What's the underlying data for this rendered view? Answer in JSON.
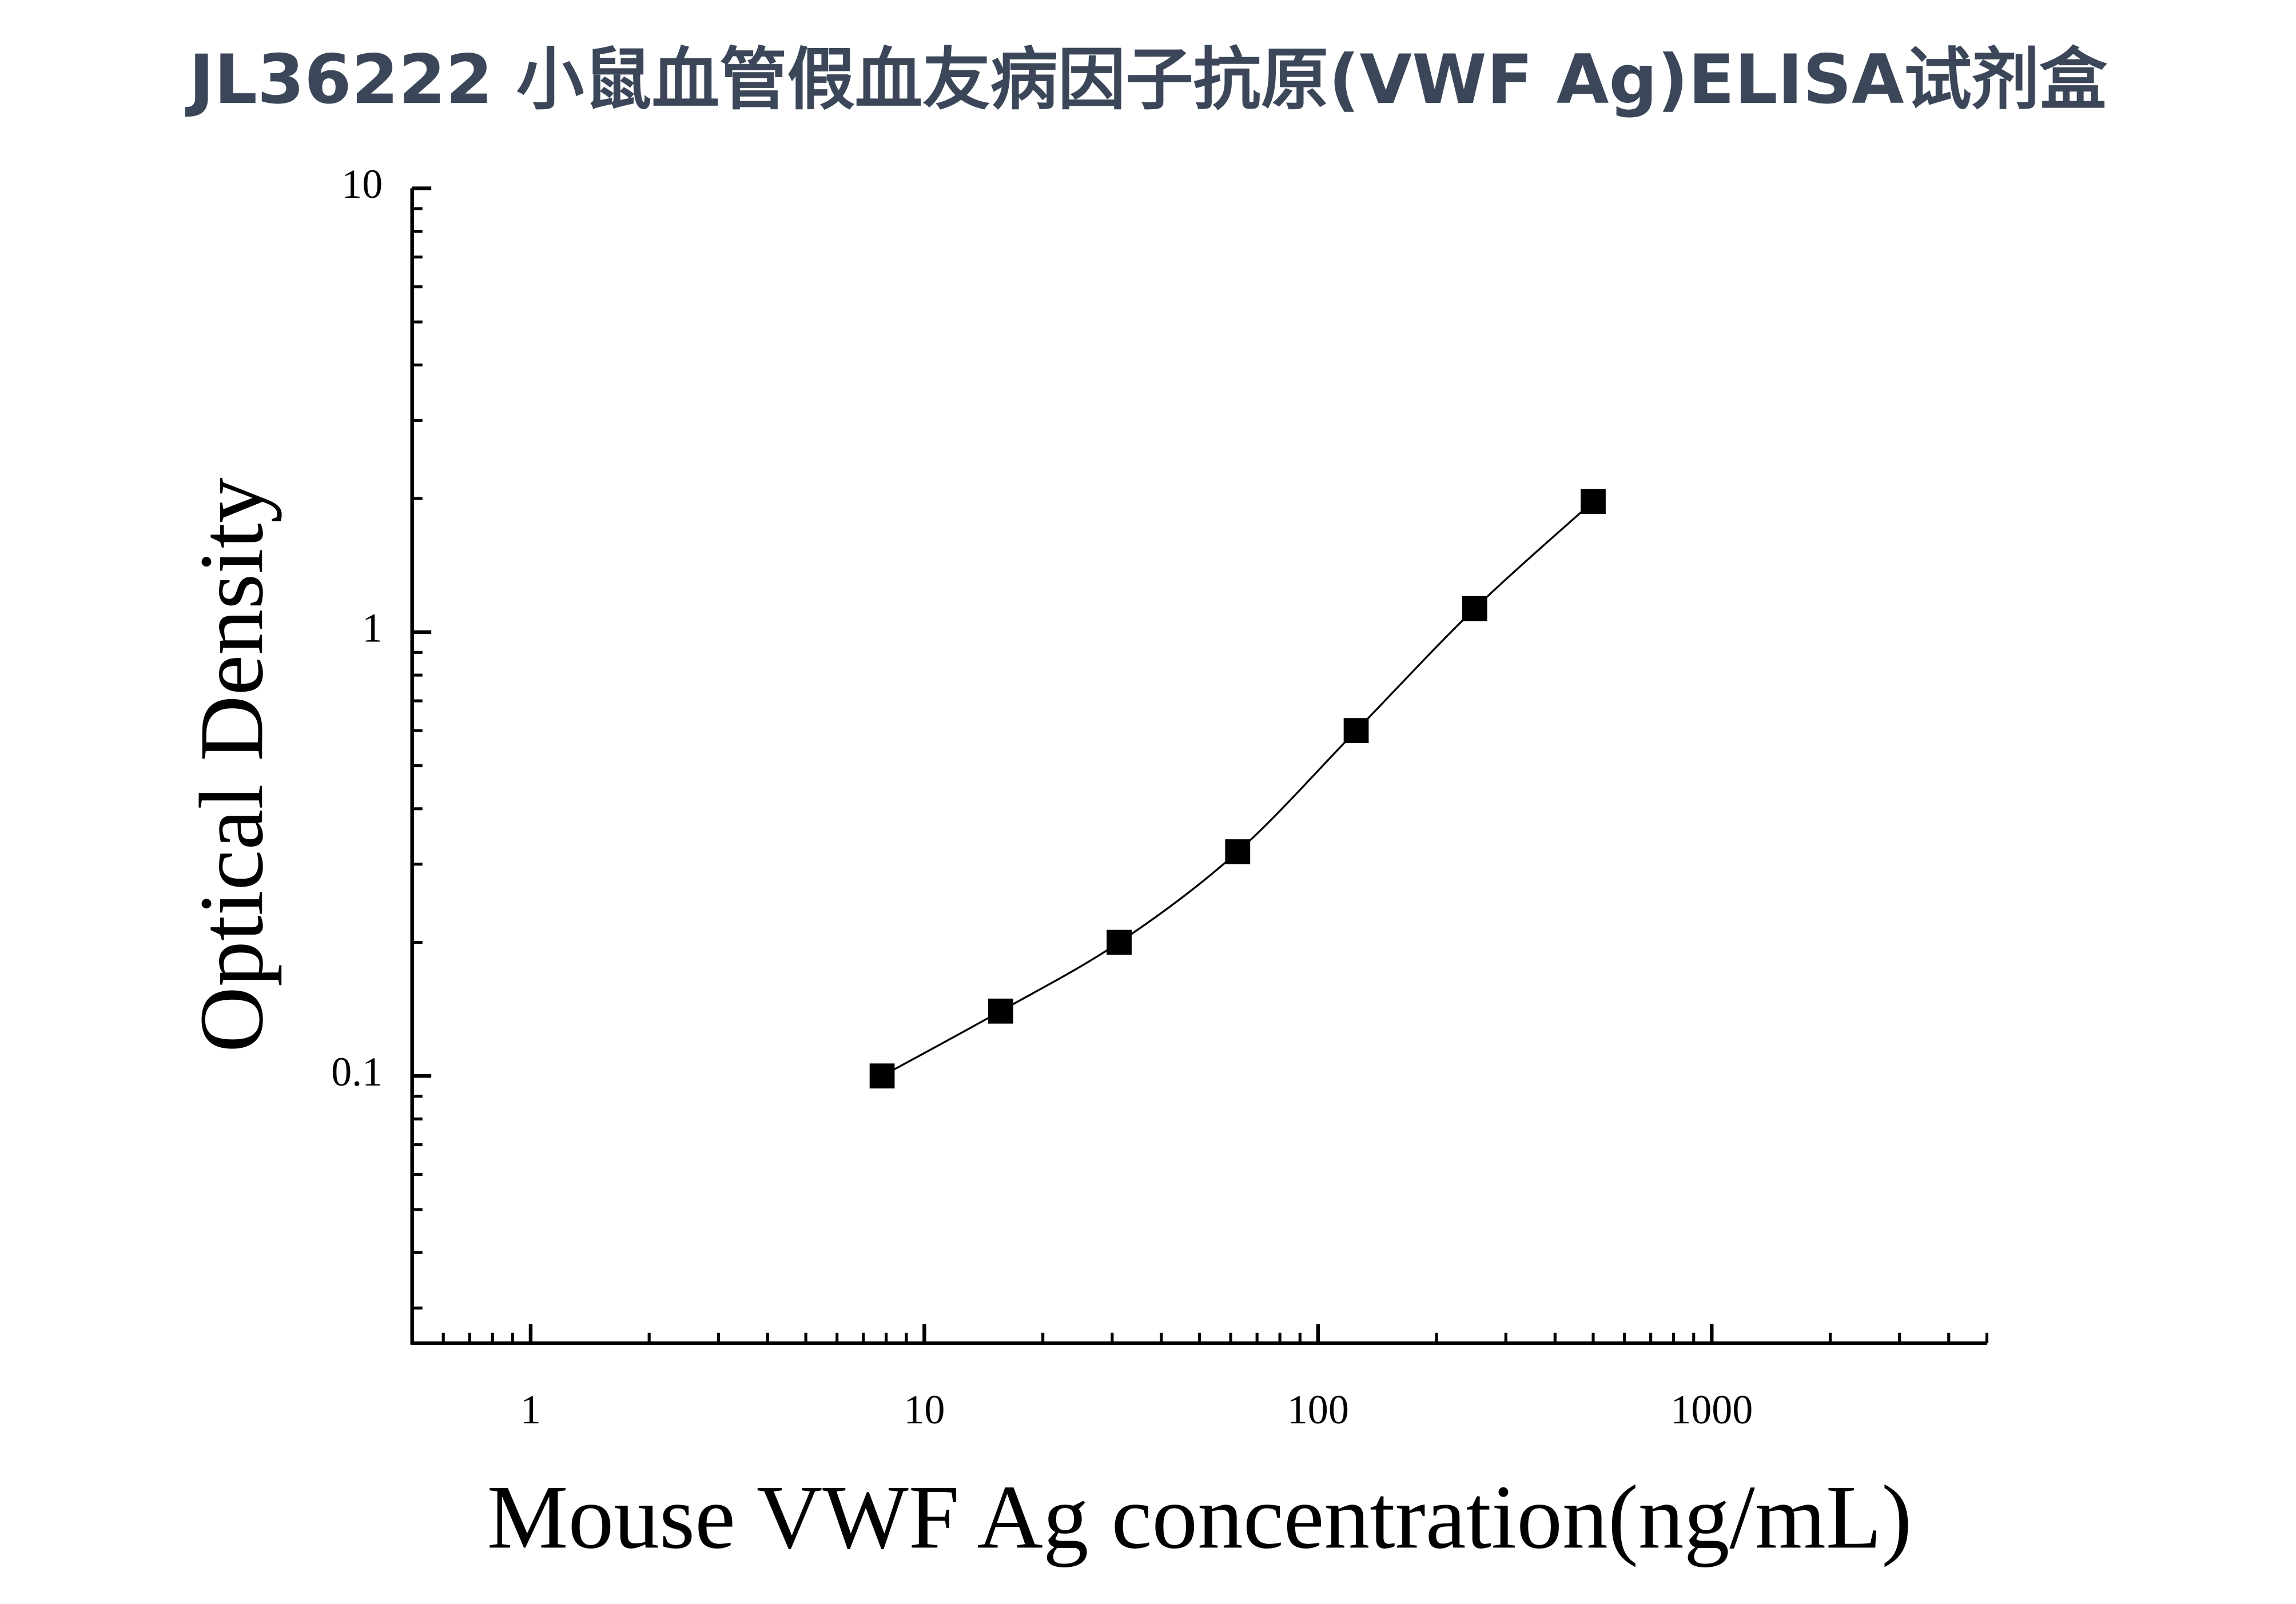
{
  "chart_data": {
    "type": "line",
    "title": "JL36222 小鼠血管假血友病因子抗原(VWF Ag)ELISA试剂盒",
    "x_label": "Mouse VWF Ag concentration(ng/mL)",
    "y_label": "Optical Density",
    "x": [
      7.8125,
      15.625,
      31.25,
      62.5,
      125,
      250,
      500
    ],
    "series": [
      {
        "color": "#000000",
        "values": [
          0.1,
          0.14,
          0.2,
          0.32,
          0.6,
          1.13,
          1.97
        ]
      }
    ],
    "xlim": [
      0.5,
      5000
    ],
    "xticks": [
      1,
      10,
      100,
      1000
    ],
    "ylim": [
      0.025,
      10
    ],
    "yticks": [
      0.1,
      1,
      10
    ],
    "xscale": "log",
    "yscale": "log",
    "grid": false
  }
}
